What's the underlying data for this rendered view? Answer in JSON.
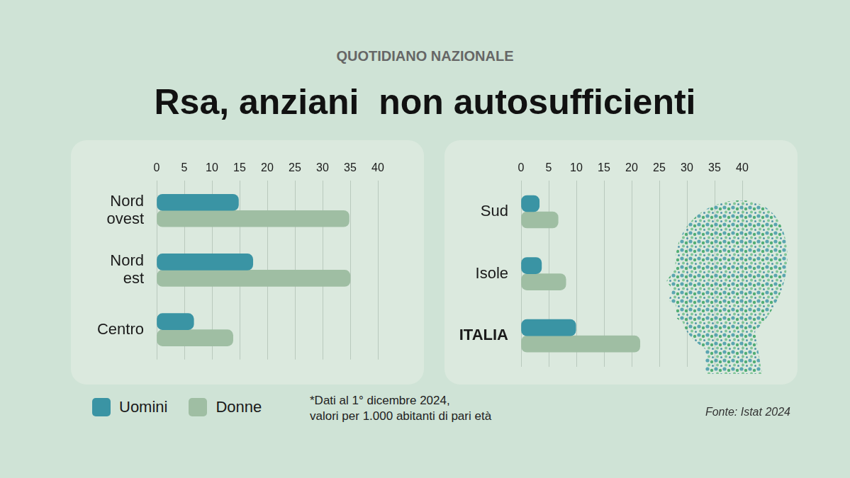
{
  "header": "QUOTIDIANO NAZIONALE",
  "title": "Rsa, anziani  non autosufficienti",
  "note": [
    "*Dati al 1° dicembre 2024,",
    "valori per 1.000 abitanti di pari età"
  ],
  "source": "Fonte: Istat 2024",
  "chart_data": [
    {
      "type": "bar",
      "orientation": "horizontal",
      "categories": [
        "Nord ovest",
        "Nord est",
        "Centro"
      ],
      "series": [
        {
          "name": "Uomini",
          "color": "#3a94a4",
          "values": [
            14.8,
            17.4,
            6.7
          ]
        },
        {
          "name": "Donne",
          "color": "#9fbea3",
          "values": [
            34.8,
            35.0,
            13.8
          ]
        }
      ],
      "xlim": [
        0,
        40
      ],
      "xticks": [
        0,
        5,
        10,
        15,
        20,
        25,
        30,
        35,
        40
      ],
      "grid": true,
      "legend": "bottom"
    },
    {
      "type": "bar",
      "orientation": "horizontal",
      "categories": [
        "Sud",
        "Isole",
        "ITALIA"
      ],
      "series": [
        {
          "name": "Uomini",
          "color": "#3a94a4",
          "values": [
            3.3,
            3.7,
            9.9
          ]
        },
        {
          "name": "Donne",
          "color": "#9fbea3",
          "values": [
            6.7,
            8.1,
            21.5
          ]
        }
      ],
      "xlim": [
        0,
        40
      ],
      "xticks": [
        0,
        5,
        10,
        15,
        20,
        25,
        30,
        35,
        40
      ],
      "grid": true
    }
  ]
}
